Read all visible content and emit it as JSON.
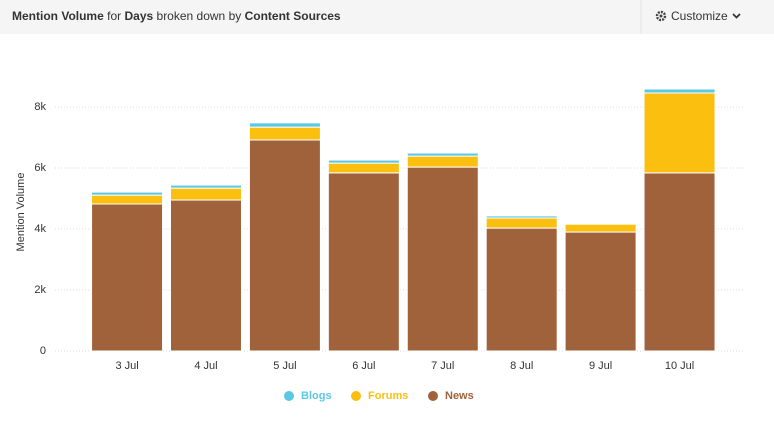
{
  "customize": "Customize",
  "chart_data": {
    "type": "stacked_bar",
    "title_parts": [
      "Mention Volume",
      "for",
      "Days",
      "broken down by",
      "Content Sources"
    ],
    "y_label": "Mention Volume",
    "categories": [
      "3 Jul",
      "4 Jul",
      "5 Jul",
      "6 Jul",
      "7 Jul",
      "8 Jul",
      "9 Jul",
      "10 Jul"
    ],
    "series": [
      {
        "name": "News",
        "color": "#a0623a",
        "values": [
          4820,
          4950,
          6920,
          5840,
          6030,
          4030,
          3900,
          5840
        ]
      },
      {
        "name": "Forums",
        "color": "#fbbf0f",
        "values": [
          290,
          390,
          420,
          320,
          360,
          330,
          260,
          2620
        ]
      },
      {
        "name": "Blogs",
        "color": "#5bc8e4",
        "values": [
          100,
          100,
          140,
          100,
          100,
          70,
          30,
          130
        ]
      }
    ],
    "legend_order": [
      "Blogs",
      "Forums",
      "News"
    ],
    "ylim": [
      0,
      9000
    ],
    "yticks": [
      0,
      {
        "value": 2000,
        "label": "2k"
      },
      {
        "value": 4000,
        "label": "4k"
      },
      {
        "value": 6000,
        "label": "6k"
      },
      {
        "value": 8000,
        "label": "8k"
      }
    ],
    "grid": true
  }
}
